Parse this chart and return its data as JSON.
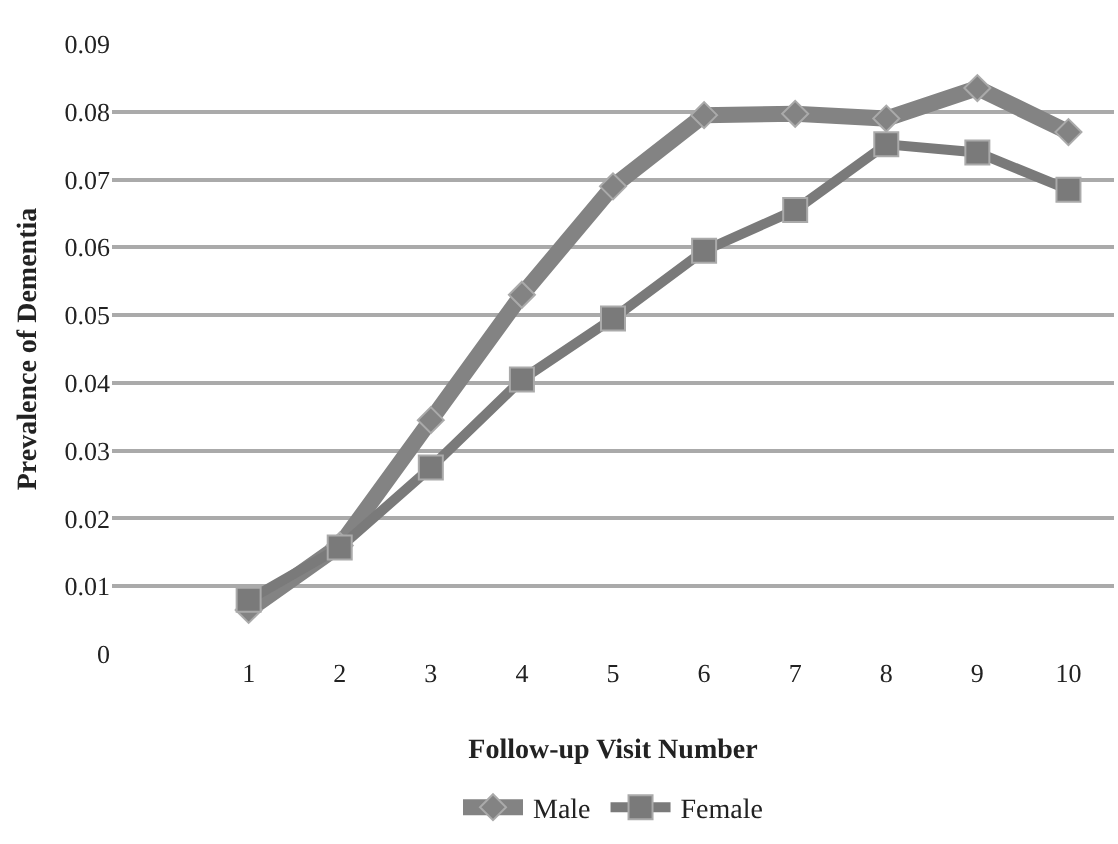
{
  "chart_data": {
    "type": "line",
    "xlabel": "Follow-up Visit Number",
    "ylabel": "Prevalence of Dementia",
    "x": [
      1,
      2,
      3,
      4,
      5,
      6,
      7,
      8,
      9,
      10
    ],
    "series": [
      {
        "name": "Male",
        "color": "#838383",
        "marker": "diamond",
        "values": [
          0.0065,
          0.016,
          0.0345,
          0.053,
          0.069,
          0.0795,
          0.0797,
          0.079,
          0.0835,
          0.077
        ]
      },
      {
        "name": "Female",
        "color": "#7a7a7a",
        "marker": "square",
        "values": [
          0.008,
          0.0157,
          0.0275,
          0.0405,
          0.0495,
          0.0595,
          0.0655,
          0.0752,
          0.074,
          0.0685
        ]
      }
    ],
    "xlim": [
      -0.5,
      10.5
    ],
    "xticks": [
      1,
      2,
      3,
      4,
      5,
      6,
      7,
      8,
      9,
      10
    ],
    "ylim": [
      0,
      0.09
    ],
    "yticks": [
      0,
      0.01,
      0.02,
      0.03,
      0.04,
      0.05,
      0.06,
      0.07,
      0.08,
      0.09
    ],
    "grid": "y",
    "legend": "bottom",
    "line_style": "solid"
  }
}
